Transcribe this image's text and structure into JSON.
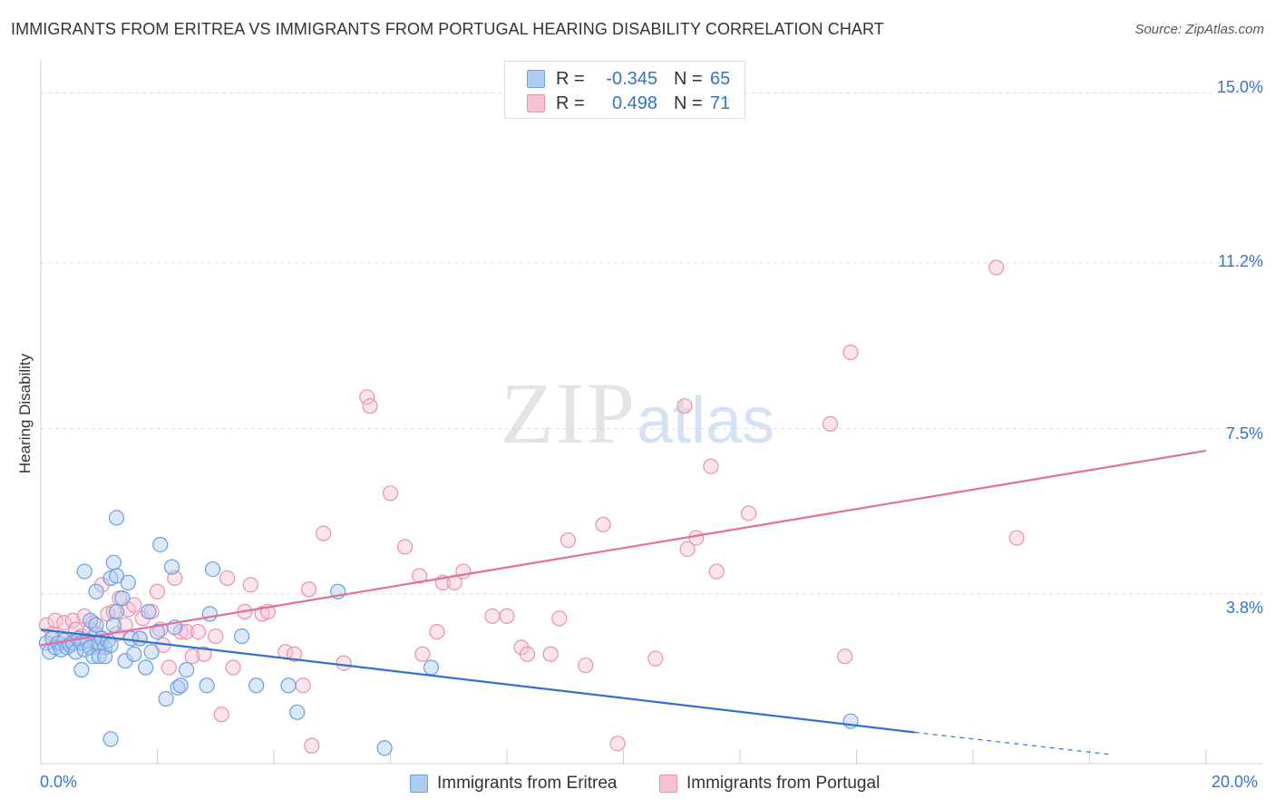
{
  "title": "IMMIGRANTS FROM ERITREA VS IMMIGRANTS FROM PORTUGAL HEARING DISABILITY CORRELATION CHART",
  "source": "Source: ZipAtlas.com",
  "watermark": {
    "zip": "ZIP",
    "atlas": "atlas"
  },
  "legend": {
    "rows": [
      {
        "r_label": "R =",
        "r_value": "-0.345",
        "n_label": "N =",
        "n_value": "65"
      },
      {
        "r_label": "R =",
        "r_value": "0.498",
        "n_label": "N =",
        "n_value": "71"
      }
    ]
  },
  "colors": {
    "eritrea_fill": "#aecbf0",
    "eritrea_stroke": "#6a9fe0",
    "eritrea_line": "#2f72d0",
    "portugal_fill": "#f7c3d3",
    "portugal_stroke": "#ec8fae",
    "portugal_line": "#e86e96",
    "tick_label": "#3573c9"
  },
  "chart_data": {
    "type": "scatter",
    "title": "IMMIGRANTS FROM ERITREA VS IMMIGRANTS FROM PORTUGAL HEARING DISABILITY CORRELATION CHART",
    "xlabel": "",
    "ylabel": "Hearing Disability",
    "xlim": [
      0,
      20
    ],
    "ylim": [
      0,
      15.5
    ],
    "x_tick_labels": [
      "0.0%",
      "20.0%"
    ],
    "y_ticks": [
      3.8,
      7.5,
      11.2,
      15.0
    ],
    "y_tick_labels": [
      "3.8%",
      "7.5%",
      "11.2%",
      "15.0%"
    ],
    "grid": true,
    "legend_position": "top-center",
    "series": [
      {
        "name": "Immigrants from Eritrea",
        "r": -0.345,
        "n": 65,
        "trend": {
          "x": [
            0,
            15
          ],
          "y": [
            3.0,
            0.7
          ],
          "dashed_to": [
            18.4,
            0.2
          ]
        },
        "points": [
          [
            0.1,
            2.7
          ],
          [
            0.15,
            2.5
          ],
          [
            0.2,
            2.8
          ],
          [
            0.25,
            2.6
          ],
          [
            0.3,
            2.7
          ],
          [
            0.35,
            2.55
          ],
          [
            0.4,
            2.75
          ],
          [
            0.45,
            2.6
          ],
          [
            0.5,
            2.65
          ],
          [
            0.55,
            2.7
          ],
          [
            0.6,
            2.5
          ],
          [
            0.65,
            2.8
          ],
          [
            0.7,
            2.7
          ],
          [
            0.75,
            2.55
          ],
          [
            0.8,
            2.75
          ],
          [
            0.85,
            2.6
          ],
          [
            0.9,
            2.4
          ],
          [
            0.95,
            2.9
          ],
          [
            1.0,
            2.7
          ],
          [
            1.05,
            2.8
          ],
          [
            1.1,
            2.6
          ],
          [
            1.15,
            2.75
          ],
          [
            0.7,
            2.1
          ],
          [
            0.85,
            3.2
          ],
          [
            0.95,
            3.1
          ],
          [
            1.0,
            2.4
          ],
          [
            1.1,
            2.4
          ],
          [
            1.2,
            2.65
          ],
          [
            1.25,
            3.1
          ],
          [
            1.3,
            3.4
          ],
          [
            0.75,
            4.3
          ],
          [
            0.95,
            3.85
          ],
          [
            1.2,
            4.15
          ],
          [
            1.25,
            4.5
          ],
          [
            1.3,
            4.2
          ],
          [
            1.5,
            4.05
          ],
          [
            1.4,
            3.7
          ],
          [
            1.45,
            2.3
          ],
          [
            1.55,
            2.8
          ],
          [
            1.6,
            2.45
          ],
          [
            1.7,
            2.8
          ],
          [
            1.8,
            2.15
          ],
          [
            1.9,
            2.5
          ],
          [
            1.85,
            3.4
          ],
          [
            2.0,
            2.95
          ],
          [
            2.05,
            4.9
          ],
          [
            2.15,
            1.45
          ],
          [
            2.25,
            4.4
          ],
          [
            2.3,
            3.05
          ],
          [
            2.35,
            1.7
          ],
          [
            2.4,
            1.75
          ],
          [
            2.5,
            2.1
          ],
          [
            2.85,
            1.75
          ],
          [
            2.9,
            3.35
          ],
          [
            2.95,
            4.35
          ],
          [
            3.45,
            2.85
          ],
          [
            3.7,
            1.75
          ],
          [
            4.25,
            1.75
          ],
          [
            4.4,
            1.15
          ],
          [
            5.1,
            3.85
          ],
          [
            1.3,
            5.5
          ],
          [
            1.2,
            0.55
          ],
          [
            5.9,
            0.35
          ],
          [
            6.7,
            2.15
          ],
          [
            13.9,
            0.95
          ]
        ]
      },
      {
        "name": "Immigrants from Portugal",
        "r": 0.498,
        "n": 71,
        "trend": {
          "x": [
            0,
            20
          ],
          "y": [
            2.65,
            7.0
          ]
        },
        "points": [
          [
            0.1,
            3.1
          ],
          [
            0.2,
            2.9
          ],
          [
            0.25,
            3.2
          ],
          [
            0.3,
            2.7
          ],
          [
            0.4,
            3.15
          ],
          [
            0.5,
            2.7
          ],
          [
            0.55,
            3.2
          ],
          [
            0.6,
            3.0
          ],
          [
            0.7,
            2.85
          ],
          [
            0.75,
            3.3
          ],
          [
            0.85,
            3.0
          ],
          [
            0.9,
            3.15
          ],
          [
            0.95,
            2.7
          ],
          [
            1.0,
            2.6
          ],
          [
            1.05,
            4.0
          ],
          [
            1.15,
            3.35
          ],
          [
            1.25,
            3.4
          ],
          [
            1.3,
            2.9
          ],
          [
            1.35,
            3.7
          ],
          [
            1.45,
            3.1
          ],
          [
            1.5,
            3.45
          ],
          [
            1.6,
            3.55
          ],
          [
            1.7,
            2.8
          ],
          [
            1.75,
            3.25
          ],
          [
            1.9,
            3.4
          ],
          [
            2.0,
            3.85
          ],
          [
            2.05,
            3.0
          ],
          [
            2.1,
            2.65
          ],
          [
            2.2,
            2.15
          ],
          [
            2.3,
            4.15
          ],
          [
            2.4,
            2.95
          ],
          [
            2.5,
            2.95
          ],
          [
            2.6,
            2.4
          ],
          [
            2.7,
            2.95
          ],
          [
            2.8,
            2.45
          ],
          [
            3.0,
            2.85
          ],
          [
            3.1,
            1.1
          ],
          [
            3.2,
            4.15
          ],
          [
            3.3,
            2.15
          ],
          [
            3.5,
            3.4
          ],
          [
            3.6,
            4.0
          ],
          [
            3.8,
            3.35
          ],
          [
            3.9,
            3.4
          ],
          [
            4.2,
            2.5
          ],
          [
            4.35,
            2.45
          ],
          [
            4.5,
            1.75
          ],
          [
            4.6,
            3.9
          ],
          [
            4.65,
            0.4
          ],
          [
            4.85,
            5.15
          ],
          [
            5.2,
            2.25
          ],
          [
            5.6,
            8.2
          ],
          [
            5.65,
            8.0
          ],
          [
            6.0,
            6.05
          ],
          [
            6.25,
            4.85
          ],
          [
            6.5,
            4.2
          ],
          [
            6.55,
            2.45
          ],
          [
            6.8,
            2.95
          ],
          [
            6.9,
            4.05
          ],
          [
            7.1,
            4.05
          ],
          [
            7.25,
            4.3
          ],
          [
            7.75,
            3.3
          ],
          [
            8.0,
            3.3
          ],
          [
            8.25,
            2.6
          ],
          [
            8.35,
            2.45
          ],
          [
            8.75,
            2.45
          ],
          [
            8.9,
            3.25
          ],
          [
            9.05,
            5.0
          ],
          [
            9.35,
            2.2
          ],
          [
            9.65,
            5.35
          ],
          [
            9.9,
            0.45
          ],
          [
            10.55,
            2.35
          ]
        ]
      }
    ]
  },
  "extra_portugal_points": [
    [
      11.05,
      8.0
    ],
    [
      11.1,
      4.8
    ],
    [
      11.25,
      5.05
    ],
    [
      11.5,
      6.65
    ],
    [
      11.6,
      4.3
    ],
    [
      12.15,
      5.6
    ],
    [
      13.55,
      7.6
    ],
    [
      13.9,
      9.2
    ],
    [
      13.8,
      2.4
    ],
    [
      16.4,
      11.1
    ],
    [
      16.75,
      5.05
    ]
  ],
  "axis": {
    "y_title": "Hearing Disability",
    "x_min_label": "0.0%",
    "x_max_label": "20.0%"
  },
  "bottom_legend": {
    "eritrea": "Immigrants from Eritrea",
    "portugal": "Immigrants from Portugal"
  }
}
